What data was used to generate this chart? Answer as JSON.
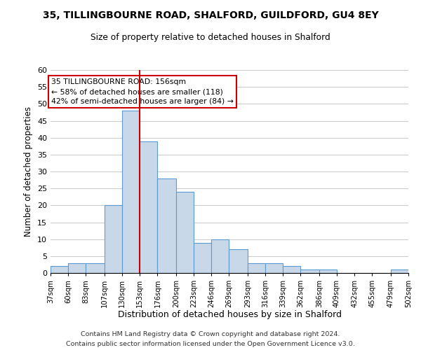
{
  "title": "35, TILLINGBOURNE ROAD, SHALFORD, GUILDFORD, GU4 8EY",
  "subtitle": "Size of property relative to detached houses in Shalford",
  "xlabel": "Distribution of detached houses by size in Shalford",
  "ylabel": "Number of detached properties",
  "bin_edges": [
    37,
    60,
    83,
    107,
    130,
    153,
    176,
    200,
    223,
    246,
    269,
    293,
    316,
    339,
    362,
    386,
    409,
    432,
    455,
    479,
    502
  ],
  "bin_labels": [
    "37sqm",
    "60sqm",
    "83sqm",
    "107sqm",
    "130sqm",
    "153sqm",
    "176sqm",
    "200sqm",
    "223sqm",
    "246sqm",
    "269sqm",
    "293sqm",
    "316sqm",
    "339sqm",
    "362sqm",
    "386sqm",
    "409sqm",
    "432sqm",
    "455sqm",
    "479sqm",
    "502sqm"
  ],
  "counts": [
    2,
    3,
    3,
    20,
    48,
    39,
    28,
    24,
    9,
    10,
    7,
    3,
    3,
    2,
    1,
    1,
    0,
    0,
    0,
    1
  ],
  "bar_facecolor": "#c8d8e8",
  "bar_edgecolor": "#5b9bd5",
  "ref_line_x": 153,
  "ref_line_color": "#cc0000",
  "annotation_line1": "35 TILLINGBOURNE ROAD: 156sqm",
  "annotation_line2": "← 58% of detached houses are smaller (118)",
  "annotation_line3": "42% of semi-detached houses are larger (84) →",
  "annotation_box_facecolor": "white",
  "annotation_box_edgecolor": "#cc0000",
  "ylim": [
    0,
    60
  ],
  "yticks": [
    0,
    5,
    10,
    15,
    20,
    25,
    30,
    35,
    40,
    45,
    50,
    55,
    60
  ],
  "grid_color": "#cccccc",
  "footer_line1": "Contains HM Land Registry data © Crown copyright and database right 2024.",
  "footer_line2": "Contains public sector information licensed under the Open Government Licence v3.0.",
  "bg_color": "white"
}
